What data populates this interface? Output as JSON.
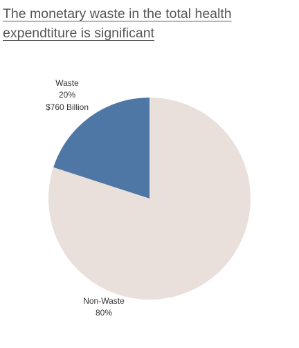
{
  "chart_data": {
    "type": "pie",
    "title": "The monetary waste in the total health expendtiture is significant",
    "categories": [
      "Waste",
      "Non-Waste"
    ],
    "values": [
      20,
      80
    ],
    "value_labels": [
      "20%",
      "80%"
    ],
    "colors": [
      "#4e77a5",
      "#e9dfdb"
    ],
    "annotation": "$760 Billion"
  }
}
